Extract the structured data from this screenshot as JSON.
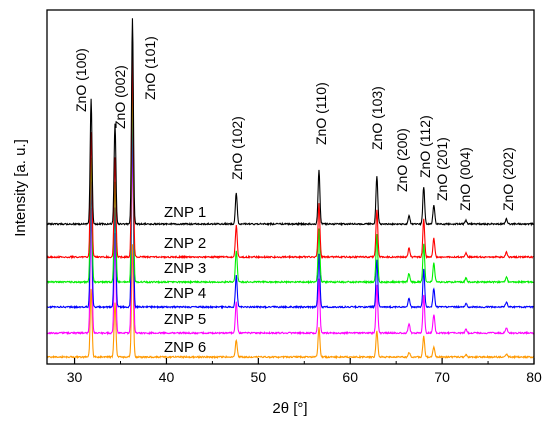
{
  "chart_data": {
    "type": "line",
    "xlabel": "2θ [°]",
    "ylabel": "Intensity [a. u.]",
    "xlim": [
      27,
      80
    ],
    "xticks": [
      30,
      40,
      50,
      60,
      70,
      80
    ],
    "yticks_shown": false,
    "grid": false,
    "legend": "none (inline series labels)",
    "peaks": [
      {
        "label": "ZnO (100)",
        "x": 31.8,
        "height": 1.0
      },
      {
        "label": "ZnO (002)",
        "x": 34.4,
        "height": 0.8
      },
      {
        "label": "ZnO (101)",
        "x": 36.3,
        "height": 1.65
      },
      {
        "label": "ZnO (102)",
        "x": 47.6,
        "height": 0.25
      },
      {
        "label": "ZnO (110)",
        "x": 56.6,
        "height": 0.43
      },
      {
        "label": "ZnO (103)",
        "x": 62.9,
        "height": 0.38
      },
      {
        "label": "ZnO (200)",
        "x": 66.4,
        "height": 0.07
      },
      {
        "label": "ZnO (112)",
        "x": 68.0,
        "height": 0.3
      },
      {
        "label": "ZnO (201)",
        "x": 69.1,
        "height": 0.15
      },
      {
        "label": "ZnO (004)",
        "x": 72.6,
        "height": 0.03
      },
      {
        "label": "ZnO (202)",
        "x": 77.0,
        "height": 0.04
      }
    ],
    "series": [
      {
        "name": "ZNP 1",
        "color": "#000000",
        "scale": 1.0
      },
      {
        "name": "ZNP 2",
        "color": "#ff0000",
        "scale": 1.0
      },
      {
        "name": "ZNP 3",
        "color": "#00ee00",
        "scale": 1.0
      },
      {
        "name": "ZNP 4",
        "color": "#0000ff",
        "scale": 1.0
      },
      {
        "name": "ZNP 5",
        "color": "#ff00ff",
        "scale": 1.0
      },
      {
        "name": "ZNP 6",
        "color": "#ff9900",
        "scale": 0.55
      }
    ]
  }
}
